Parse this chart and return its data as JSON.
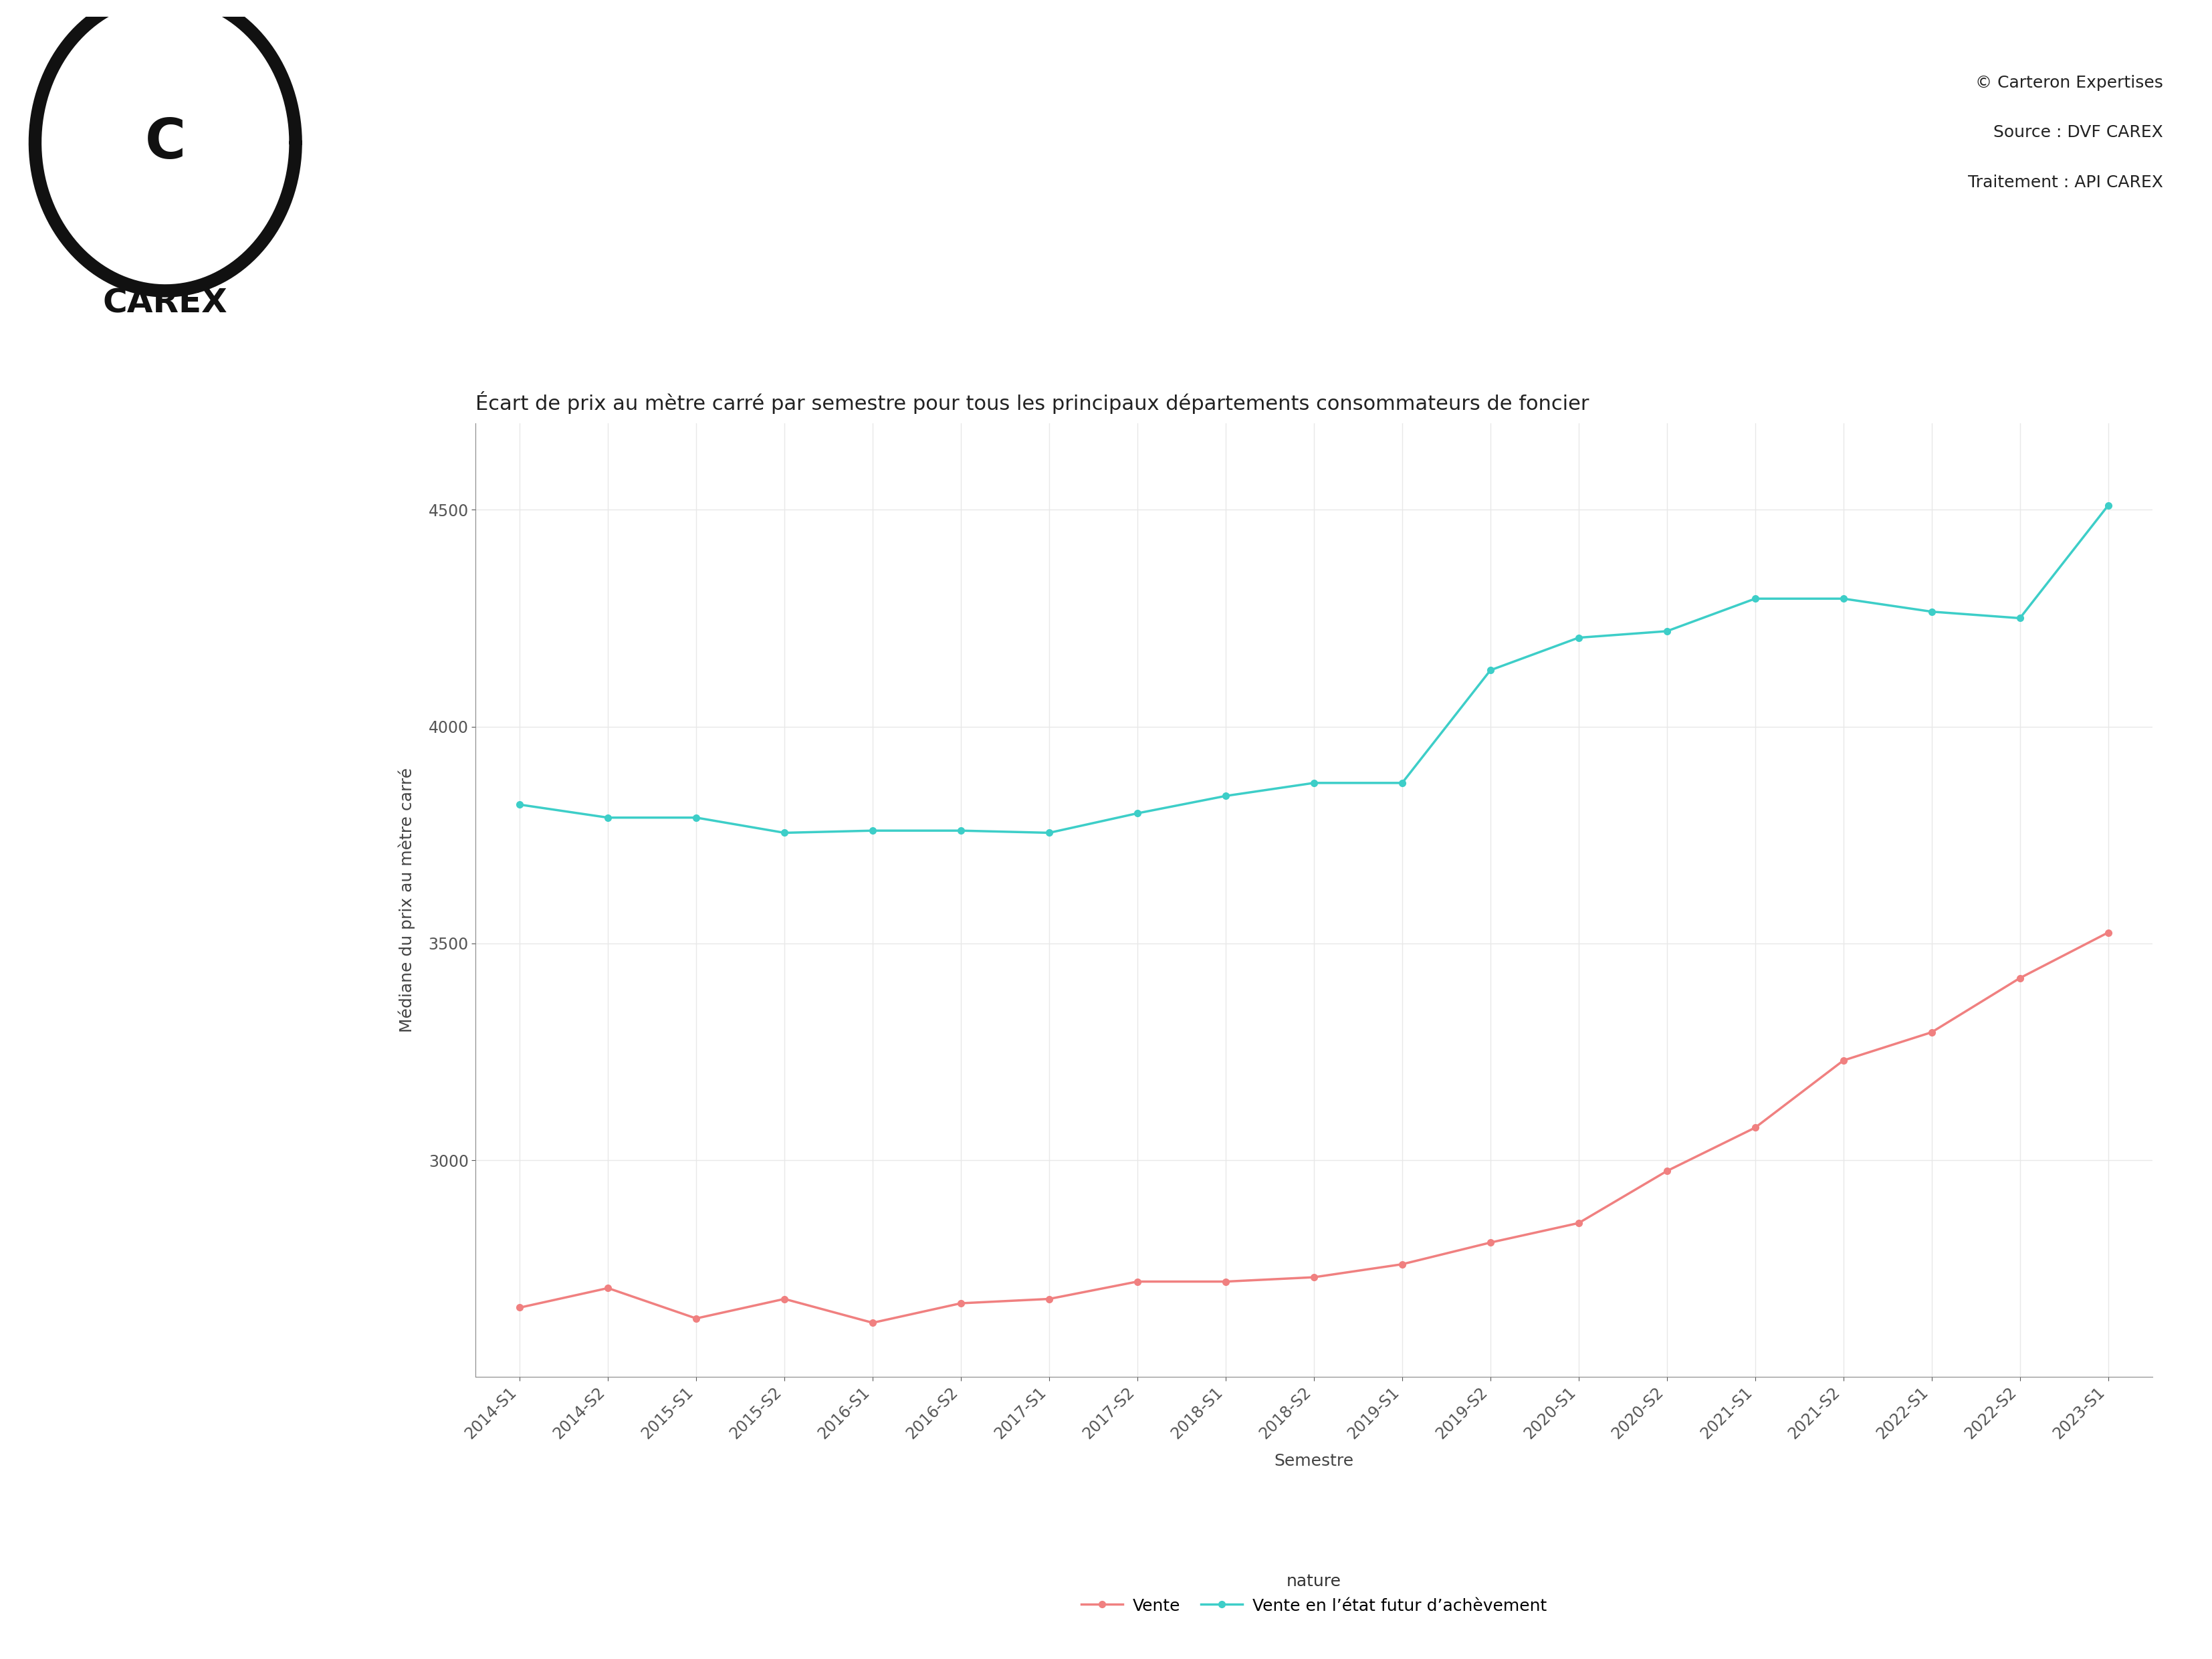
{
  "title": "Écart de prix au mètre carré par semestre pour tous les principaux départements consommateurs de foncier",
  "xlabel": "Semestre",
  "ylabel": "Médiane du prix au mètre carré",
  "watermark_line1": "© Carteron Expertises",
  "watermark_line2": "Source : DVF CAREX",
  "watermark_line3": "Traitement : API CAREX",
  "x_labels": [
    "2014-S1",
    "2014-S2",
    "2015-S1",
    "2015-S2",
    "2016-S1",
    "2016-S2",
    "2017-S1",
    "2017-S2",
    "2018-S1",
    "2018-S2",
    "2019-S1",
    "2019-S2",
    "2020-S1",
    "2020-S2",
    "2021-S1",
    "2021-S2",
    "2022-S1",
    "2022-S2",
    "2023-S1"
  ],
  "vente_values": [
    2660,
    2705,
    2635,
    2680,
    2625,
    2670,
    2680,
    2720,
    2720,
    2730,
    2760,
    2810,
    2855,
    2975,
    3075,
    3230,
    3295,
    3420,
    3525
  ],
  "vefa_values": [
    3820,
    3790,
    3790,
    3755,
    3760,
    3760,
    3755,
    3800,
    3840,
    3870,
    3870,
    4130,
    4205,
    4220,
    4295,
    4295,
    4265,
    4250,
    4510
  ],
  "vente_color": "#F08080",
  "vefa_color": "#3DCEC8",
  "background_color": "#FFFFFF",
  "grid_color": "#E8E8E8",
  "ylim_min": 2500,
  "ylim_max": 4700,
  "yticks": [
    3000,
    3500,
    4000,
    4500
  ],
  "legend_label_nature": "nature",
  "legend_label_vente": "Vente",
  "legend_label_vefa": "Vente en l’état futur d’achèvement",
  "title_fontsize": 22,
  "axis_label_fontsize": 18,
  "tick_fontsize": 17,
  "legend_fontsize": 18,
  "watermark_fontsize": 18,
  "carex_fontsize": 36,
  "logo_circle_lw": 14
}
